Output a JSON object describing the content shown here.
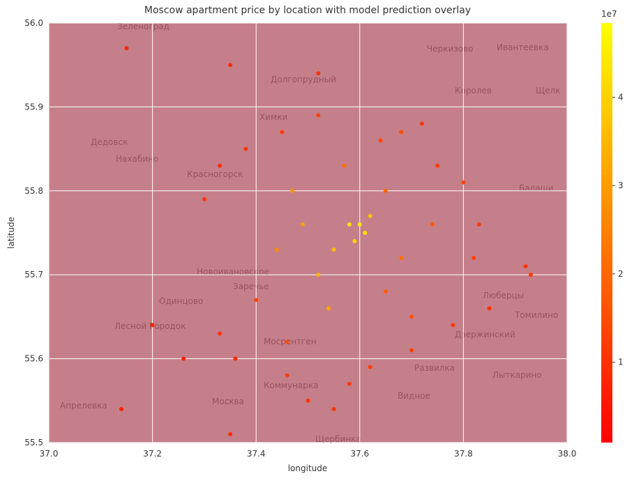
{
  "chart_data": {
    "type": "scatter",
    "title": "Moscow apartment price by location with model prediction overlay",
    "x_label": "longitude",
    "y_label": "latitude",
    "xlim": [
      37.0,
      38.0
    ],
    "xticks": [
      {
        "value": 37.0,
        "label": "37.0"
      },
      37.2,
      37.4,
      37.6,
      37.8,
      {
        "value": 38.0,
        "label": "38.0"
      }
    ],
    "ylim": [
      55.5,
      56.0
    ],
    "yticks": [
      55.5,
      55.6,
      55.7,
      55.8,
      55.9,
      {
        "value": 56.0,
        "label": "56.0"
      }
    ],
    "grid": true,
    "colormap": "autumn",
    "clim": [
      900000,
      48400000
    ],
    "colorbar_ticks": [
      {
        "value": 10000000,
        "label": "1"
      },
      {
        "value": 20000000,
        "label": "2"
      },
      {
        "value": 30000000,
        "label": "3"
      },
      {
        "value": 40000000,
        "label": "4"
      }
    ],
    "colorbar_offset_label": "1e7",
    "map_labels": [
      "Зеленоград",
      "Черкизово",
      "Ивантеевка",
      "Долгопрудный",
      "Королев",
      "Щелк",
      "Химки",
      "Дедовск",
      "Нахабино",
      "Красногорск",
      "Балаши",
      "Новоивановское",
      "Заречье",
      "Одинцово",
      "Люберцы",
      "Томилино",
      "Лесной Городок",
      "Мосрентген",
      "Дзержинский",
      "Развилка",
      "Лыткарино",
      "Коммунарка",
      "Видное",
      "Апрелевка",
      "Москва",
      "Щербинка"
    ],
    "series": [
      {
        "name": "price",
        "x": [
          37.6,
          37.61,
          37.59,
          37.62,
          37.58,
          37.55,
          37.52,
          37.49,
          37.54,
          37.47,
          37.93,
          37.92,
          37.8,
          37.75,
          37.72,
          37.68,
          37.52,
          37.45,
          37.38,
          37.33,
          37.3,
          37.4,
          37.33,
          37.36,
          37.46,
          37.5,
          37.55,
          37.62,
          37.7,
          37.78,
          37.85,
          37.82,
          37.83,
          37.7,
          37.65,
          37.68,
          37.15,
          37.14,
          37.35,
          37.2,
          37.26,
          37.52,
          37.35,
          37.65,
          37.57,
          37.44,
          37.46,
          37.58,
          37.74,
          37.64
        ],
        "y": [
          55.76,
          55.75,
          55.74,
          55.77,
          55.76,
          55.73,
          55.7,
          55.76,
          55.66,
          55.8,
          55.7,
          55.71,
          55.81,
          55.83,
          55.88,
          55.87,
          55.89,
          55.87,
          55.85,
          55.83,
          55.79,
          55.67,
          55.63,
          55.6,
          55.58,
          55.55,
          55.54,
          55.59,
          55.61,
          55.64,
          55.66,
          55.72,
          55.76,
          55.65,
          55.68,
          55.72,
          55.97,
          55.54,
          55.51,
          55.64,
          55.6,
          55.94,
          55.95,
          55.8,
          55.83,
          55.73,
          55.62,
          55.57,
          55.76,
          55.86
        ],
        "values": [
          45000000,
          42000000,
          40000000,
          38000000,
          44000000,
          36000000,
          34000000,
          30000000,
          32000000,
          28000000,
          12000000,
          10000000,
          14000000,
          12000000,
          11000000,
          15000000,
          13000000,
          12000000,
          10000000,
          9000000,
          11000000,
          13000000,
          10000000,
          9000000,
          12000000,
          10000000,
          11000000,
          13000000,
          12000000,
          11000000,
          10000000,
          13000000,
          12000000,
          16000000,
          18000000,
          22000000,
          8000000,
          7000000,
          9000000,
          8000000,
          7000000,
          10000000,
          9000000,
          20000000,
          22000000,
          26000000,
          15000000,
          12000000,
          18000000,
          14000000
        ]
      }
    ]
  }
}
